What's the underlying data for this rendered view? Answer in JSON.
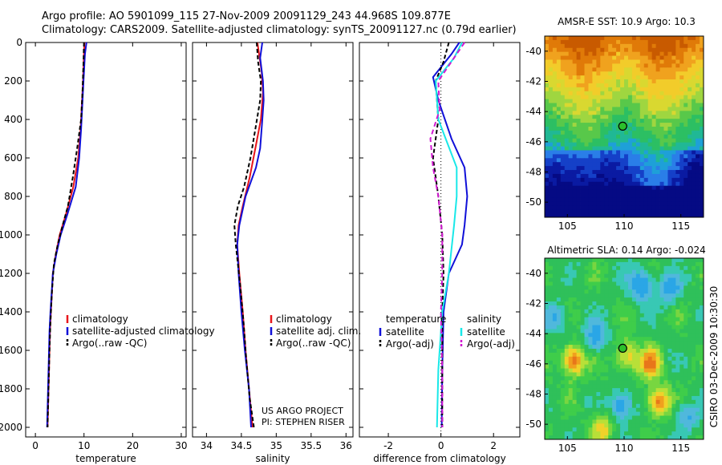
{
  "header": {
    "line1": "Argo profile: AO 5901099_115 27-Nov-2009 20091129_243 44.968S 109.877E",
    "line2": "Climatology: CARS2009. Satellite-adjusted climatology: synTS_20091127.nc (0.79d earlier)"
  },
  "colors": {
    "red": "#e8161c",
    "blue": "#1010d8",
    "black": "#000000",
    "cyan": "#19e8e8",
    "magenta": "#d11ad1"
  },
  "chart_data": [
    {
      "id": "temperature",
      "type": "line",
      "xlabel": "temperature",
      "xlim": [
        -2,
        31
      ],
      "ylim": [
        0,
        2050
      ],
      "xticks": [
        0,
        10,
        20,
        30
      ],
      "yticks": [
        0,
        200,
        400,
        600,
        800,
        1000,
        1200,
        1400,
        1600,
        1800,
        2000
      ],
      "y_reversed": true,
      "legend": {
        "position": "lower-middle",
        "entries": [
          "climatology",
          "satellite-adjusted climatology",
          "Argo(..raw -QC)"
        ]
      },
      "series": [
        {
          "name": "climatology",
          "color": "red",
          "dash": "none",
          "points": [
            [
              10.1,
              0
            ],
            [
              10.0,
              50
            ],
            [
              9.8,
              200
            ],
            [
              9.6,
              300
            ],
            [
              9.3,
              450
            ],
            [
              8.8,
              600
            ],
            [
              7.8,
              750
            ],
            [
              6.2,
              900
            ],
            [
              5.0,
              1000
            ],
            [
              4.2,
              1100
            ],
            [
              3.6,
              1200
            ],
            [
              3.2,
              1400
            ],
            [
              3.0,
              1500
            ],
            [
              2.8,
              1700
            ],
            [
              2.6,
              1900
            ],
            [
              2.5,
              2000
            ]
          ]
        },
        {
          "name": "satellite-adjusted climatology",
          "color": "blue",
          "dash": "none",
          "points": [
            [
              10.5,
              0
            ],
            [
              10.2,
              60
            ],
            [
              9.9,
              200
            ],
            [
              9.7,
              300
            ],
            [
              9.4,
              450
            ],
            [
              9.0,
              600
            ],
            [
              8.3,
              750
            ],
            [
              6.5,
              900
            ],
            [
              5.2,
              1000
            ],
            [
              4.3,
              1100
            ],
            [
              3.6,
              1200
            ],
            [
              3.1,
              1400
            ],
            [
              2.9,
              1500
            ],
            [
              2.7,
              1700
            ],
            [
              2.5,
              1900
            ],
            [
              2.4,
              2000
            ]
          ]
        },
        {
          "name": "Argo(..raw -QC)",
          "color": "black",
          "dash": "5,3",
          "points": [
            [
              10.0,
              0
            ],
            [
              9.9,
              100
            ],
            [
              9.7,
              250
            ],
            [
              9.4,
              400
            ],
            [
              8.6,
              550
            ],
            [
              7.7,
              700
            ],
            [
              6.7,
              850
            ],
            [
              5.6,
              950
            ],
            [
              4.6,
              1050
            ],
            [
              3.8,
              1150
            ],
            [
              3.4,
              1300
            ],
            [
              3.1,
              1450
            ],
            [
              2.9,
              1600
            ],
            [
              2.7,
              1800
            ],
            [
              2.5,
              2000
            ]
          ]
        }
      ]
    },
    {
      "id": "salinity",
      "type": "line",
      "xlabel": "salinity",
      "xlim": [
        33.8,
        36.1
      ],
      "ylim": [
        0,
        2050
      ],
      "xticks": [
        34,
        34.5,
        35,
        35.5,
        36
      ],
      "xtick_labels": [
        "34",
        "34.5",
        "35",
        "35.5",
        "36"
      ],
      "y_reversed": true,
      "legend": {
        "position": "lower-right",
        "entries": [
          "climatology",
          "satellite adj. clim.",
          "Argo(..raw -QC)"
        ]
      },
      "annotation": [
        "US ARGO PROJECT",
        "PI: STEPHEN RISER"
      ],
      "series": [
        {
          "name": "climatology",
          "color": "red",
          "dash": "none",
          "points": [
            [
              34.73,
              0
            ],
            [
              34.75,
              50
            ],
            [
              34.79,
              150
            ],
            [
              34.81,
              260
            ],
            [
              34.78,
              400
            ],
            [
              34.7,
              550
            ],
            [
              34.62,
              700
            ],
            [
              34.52,
              850
            ],
            [
              34.46,
              950
            ],
            [
              34.44,
              1050
            ],
            [
              34.47,
              1200
            ],
            [
              34.52,
              1400
            ],
            [
              34.56,
              1600
            ],
            [
              34.61,
              1800
            ],
            [
              34.66,
              2000
            ]
          ]
        },
        {
          "name": "satellite adj. clim.",
          "color": "blue",
          "dash": "none",
          "points": [
            [
              34.8,
              0
            ],
            [
              34.77,
              80
            ],
            [
              34.81,
              200
            ],
            [
              34.82,
              300
            ],
            [
              34.8,
              400
            ],
            [
              34.77,
              550
            ],
            [
              34.71,
              650
            ],
            [
              34.56,
              800
            ],
            [
              34.47,
              950
            ],
            [
              34.44,
              1050
            ],
            [
              34.46,
              1200
            ],
            [
              34.5,
              1400
            ],
            [
              34.55,
              1600
            ],
            [
              34.61,
              1800
            ],
            [
              34.64,
              2000
            ]
          ]
        },
        {
          "name": "Argo(..raw -QC)",
          "color": "black",
          "dash": "5,3",
          "points": [
            [
              34.72,
              0
            ],
            [
              34.74,
              100
            ],
            [
              34.78,
              200
            ],
            [
              34.77,
              300
            ],
            [
              34.7,
              450
            ],
            [
              34.63,
              600
            ],
            [
              34.54,
              750
            ],
            [
              34.45,
              850
            ],
            [
              34.4,
              950
            ],
            [
              34.42,
              1050
            ],
            [
              34.48,
              1250
            ],
            [
              34.53,
              1450
            ],
            [
              34.57,
              1650
            ],
            [
              34.62,
              1850
            ],
            [
              34.68,
              2000
            ]
          ]
        }
      ]
    },
    {
      "id": "difference",
      "type": "line",
      "xlabel": "difference from climatology",
      "xlim": [
        -3.1,
        3.0
      ],
      "ylim": [
        0,
        2050
      ],
      "xticks": [
        -2,
        0,
        2
      ],
      "y_reversed": true,
      "zero_line": "dotted",
      "legend": {
        "position": "lower-middle",
        "temperature_heading": "temperature",
        "salinity_heading": "salinity",
        "entries": [
          "satellite",
          "Argo(-adj)",
          "satellite",
          "Argo(-adj)"
        ]
      },
      "series": [
        {
          "name": "temperature satellite",
          "color": "blue",
          "dash": "none",
          "points": [
            [
              0.7,
              0
            ],
            [
              0.4,
              60
            ],
            [
              -0.3,
              180
            ],
            [
              -0.1,
              300
            ],
            [
              0.4,
              500
            ],
            [
              0.9,
              650
            ],
            [
              1.0,
              800
            ],
            [
              0.9,
              950
            ],
            [
              0.8,
              1050
            ],
            [
              0.3,
              1200
            ],
            [
              0.1,
              1400
            ],
            [
              0.05,
              1700
            ],
            [
              0.03,
              2000
            ]
          ]
        },
        {
          "name": "temperature Argo(-adj)",
          "color": "black",
          "dash": "5,3",
          "points": [
            [
              0.3,
              0
            ],
            [
              0.1,
              100
            ],
            [
              -0.2,
              200
            ],
            [
              -0.1,
              400
            ],
            [
              -0.3,
              600
            ],
            [
              -0.1,
              800
            ],
            [
              0.05,
              1000
            ],
            [
              0.1,
              1200
            ],
            [
              0.05,
              1400
            ],
            [
              0.05,
              1700
            ],
            [
              0.05,
              2000
            ]
          ]
        },
        {
          "name": "salinity satellite",
          "color": "cyan",
          "dash": "none",
          "points": [
            [
              0.8,
              0
            ],
            [
              0.5,
              80
            ],
            [
              -0.2,
              200
            ],
            [
              -0.1,
              400
            ],
            [
              0.6,
              650
            ],
            [
              0.6,
              800
            ],
            [
              0.5,
              950
            ],
            [
              0.3,
              1200
            ],
            [
              0.05,
              1400
            ],
            [
              -0.1,
              1700
            ],
            [
              -0.15,
              2000
            ]
          ]
        },
        {
          "name": "salinity Argo(-adj)",
          "color": "magenta",
          "dash": "6,4",
          "points": [
            [
              0.9,
              0
            ],
            [
              0.5,
              80
            ],
            [
              -0.1,
              200
            ],
            [
              -0.05,
              350
            ],
            [
              -0.4,
              500
            ],
            [
              -0.3,
              650
            ],
            [
              -0.1,
              800
            ],
            [
              0.05,
              1000
            ],
            [
              0.05,
              1200
            ],
            [
              0.0,
              1400
            ],
            [
              0.05,
              1700
            ],
            [
              0.05,
              2000
            ]
          ]
        }
      ]
    },
    {
      "id": "amsre_sst",
      "type": "heatmap",
      "title": "AMSR-E SST: 10.9 Argo: 10.3",
      "xlim": [
        103,
        117
      ],
      "ylim": [
        -51,
        -39
      ],
      "xticks": [
        105,
        110,
        115
      ],
      "yticks": [
        -40,
        -42,
        -44,
        -46,
        -48,
        -50
      ],
      "ytick_labels": [
        "-40",
        "-42",
        "-44",
        "-46",
        "-48",
        "-50"
      ],
      "marker": {
        "lon": 109.877,
        "lat": -44.968
      },
      "palette_description": "orange north, green mid, cyan/navy south",
      "colors": [
        "#c85a00",
        "#e07a08",
        "#f0a21e",
        "#f2cc2a",
        "#d9d830",
        "#9fd640",
        "#58c84a",
        "#2cbf63",
        "#20b895",
        "#1ea0d8",
        "#2a7ee8",
        "#1540c8",
        "#0a1aa2",
        "#050a84"
      ]
    },
    {
      "id": "altimetric_sla",
      "type": "heatmap",
      "title": "Altimetric SLA: 0.14 Argo: -0.024",
      "xlim": [
        103,
        117
      ],
      "ylim": [
        -51,
        -39
      ],
      "xticks": [
        105,
        110,
        115
      ],
      "yticks": [
        -40,
        -42,
        -44,
        -46,
        -48,
        -50
      ],
      "ytick_labels": [
        "-40",
        "-42",
        "-44",
        "-46",
        "-48",
        "-50"
      ],
      "marker": {
        "lon": 109.877,
        "lat": -44.968
      },
      "side_label": "CSIRO 03-Dec-2009 10:30:30",
      "colors": [
        "#2fc05a",
        "#3fcd4a",
        "#78d640",
        "#b8e038",
        "#f0d22a",
        "#f0a01e",
        "#e8761a",
        "#38c8b4",
        "#50b8dc",
        "#2aa6e6"
      ]
    }
  ]
}
